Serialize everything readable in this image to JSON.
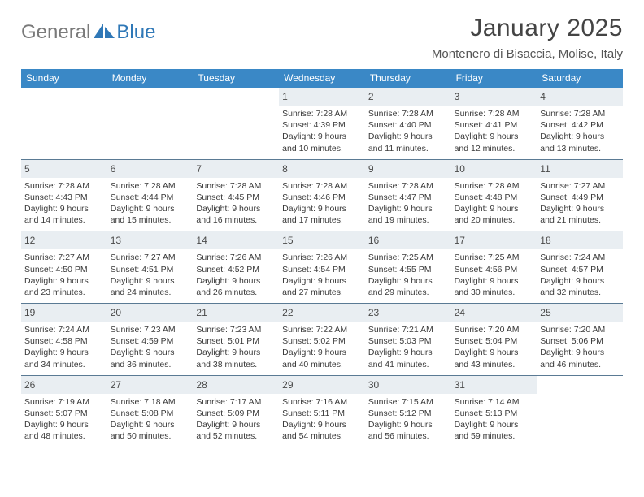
{
  "brand": {
    "part1": "General",
    "part2": "Blue"
  },
  "header": {
    "title": "January 2025",
    "location": "Montenero di Bisaccia, Molise, Italy"
  },
  "colors": {
    "header_bar": "#3a88c6",
    "week_divider": "#5a7a94",
    "day_band": "#e9eef2",
    "logo_gray": "#7a7a7a",
    "logo_blue": "#2f78b7"
  },
  "daysOfWeek": [
    "Sunday",
    "Monday",
    "Tuesday",
    "Wednesday",
    "Thursday",
    "Friday",
    "Saturday"
  ],
  "weeks": [
    [
      {
        "empty": true
      },
      {
        "empty": true
      },
      {
        "empty": true
      },
      {
        "day": "1",
        "sunrise": "Sunrise: 7:28 AM",
        "sunset": "Sunset: 4:39 PM",
        "daylight1": "Daylight: 9 hours",
        "daylight2": "and 10 minutes."
      },
      {
        "day": "2",
        "sunrise": "Sunrise: 7:28 AM",
        "sunset": "Sunset: 4:40 PM",
        "daylight1": "Daylight: 9 hours",
        "daylight2": "and 11 minutes."
      },
      {
        "day": "3",
        "sunrise": "Sunrise: 7:28 AM",
        "sunset": "Sunset: 4:41 PM",
        "daylight1": "Daylight: 9 hours",
        "daylight2": "and 12 minutes."
      },
      {
        "day": "4",
        "sunrise": "Sunrise: 7:28 AM",
        "sunset": "Sunset: 4:42 PM",
        "daylight1": "Daylight: 9 hours",
        "daylight2": "and 13 minutes."
      }
    ],
    [
      {
        "day": "5",
        "sunrise": "Sunrise: 7:28 AM",
        "sunset": "Sunset: 4:43 PM",
        "daylight1": "Daylight: 9 hours",
        "daylight2": "and 14 minutes."
      },
      {
        "day": "6",
        "sunrise": "Sunrise: 7:28 AM",
        "sunset": "Sunset: 4:44 PM",
        "daylight1": "Daylight: 9 hours",
        "daylight2": "and 15 minutes."
      },
      {
        "day": "7",
        "sunrise": "Sunrise: 7:28 AM",
        "sunset": "Sunset: 4:45 PM",
        "daylight1": "Daylight: 9 hours",
        "daylight2": "and 16 minutes."
      },
      {
        "day": "8",
        "sunrise": "Sunrise: 7:28 AM",
        "sunset": "Sunset: 4:46 PM",
        "daylight1": "Daylight: 9 hours",
        "daylight2": "and 17 minutes."
      },
      {
        "day": "9",
        "sunrise": "Sunrise: 7:28 AM",
        "sunset": "Sunset: 4:47 PM",
        "daylight1": "Daylight: 9 hours",
        "daylight2": "and 19 minutes."
      },
      {
        "day": "10",
        "sunrise": "Sunrise: 7:28 AM",
        "sunset": "Sunset: 4:48 PM",
        "daylight1": "Daylight: 9 hours",
        "daylight2": "and 20 minutes."
      },
      {
        "day": "11",
        "sunrise": "Sunrise: 7:27 AM",
        "sunset": "Sunset: 4:49 PM",
        "daylight1": "Daylight: 9 hours",
        "daylight2": "and 21 minutes."
      }
    ],
    [
      {
        "day": "12",
        "sunrise": "Sunrise: 7:27 AM",
        "sunset": "Sunset: 4:50 PM",
        "daylight1": "Daylight: 9 hours",
        "daylight2": "and 23 minutes."
      },
      {
        "day": "13",
        "sunrise": "Sunrise: 7:27 AM",
        "sunset": "Sunset: 4:51 PM",
        "daylight1": "Daylight: 9 hours",
        "daylight2": "and 24 minutes."
      },
      {
        "day": "14",
        "sunrise": "Sunrise: 7:26 AM",
        "sunset": "Sunset: 4:52 PM",
        "daylight1": "Daylight: 9 hours",
        "daylight2": "and 26 minutes."
      },
      {
        "day": "15",
        "sunrise": "Sunrise: 7:26 AM",
        "sunset": "Sunset: 4:54 PM",
        "daylight1": "Daylight: 9 hours",
        "daylight2": "and 27 minutes."
      },
      {
        "day": "16",
        "sunrise": "Sunrise: 7:25 AM",
        "sunset": "Sunset: 4:55 PM",
        "daylight1": "Daylight: 9 hours",
        "daylight2": "and 29 minutes."
      },
      {
        "day": "17",
        "sunrise": "Sunrise: 7:25 AM",
        "sunset": "Sunset: 4:56 PM",
        "daylight1": "Daylight: 9 hours",
        "daylight2": "and 30 minutes."
      },
      {
        "day": "18",
        "sunrise": "Sunrise: 7:24 AM",
        "sunset": "Sunset: 4:57 PM",
        "daylight1": "Daylight: 9 hours",
        "daylight2": "and 32 minutes."
      }
    ],
    [
      {
        "day": "19",
        "sunrise": "Sunrise: 7:24 AM",
        "sunset": "Sunset: 4:58 PM",
        "daylight1": "Daylight: 9 hours",
        "daylight2": "and 34 minutes."
      },
      {
        "day": "20",
        "sunrise": "Sunrise: 7:23 AM",
        "sunset": "Sunset: 4:59 PM",
        "daylight1": "Daylight: 9 hours",
        "daylight2": "and 36 minutes."
      },
      {
        "day": "21",
        "sunrise": "Sunrise: 7:23 AM",
        "sunset": "Sunset: 5:01 PM",
        "daylight1": "Daylight: 9 hours",
        "daylight2": "and 38 minutes."
      },
      {
        "day": "22",
        "sunrise": "Sunrise: 7:22 AM",
        "sunset": "Sunset: 5:02 PM",
        "daylight1": "Daylight: 9 hours",
        "daylight2": "and 40 minutes."
      },
      {
        "day": "23",
        "sunrise": "Sunrise: 7:21 AM",
        "sunset": "Sunset: 5:03 PM",
        "daylight1": "Daylight: 9 hours",
        "daylight2": "and 41 minutes."
      },
      {
        "day": "24",
        "sunrise": "Sunrise: 7:20 AM",
        "sunset": "Sunset: 5:04 PM",
        "daylight1": "Daylight: 9 hours",
        "daylight2": "and 43 minutes."
      },
      {
        "day": "25",
        "sunrise": "Sunrise: 7:20 AM",
        "sunset": "Sunset: 5:06 PM",
        "daylight1": "Daylight: 9 hours",
        "daylight2": "and 46 minutes."
      }
    ],
    [
      {
        "day": "26",
        "sunrise": "Sunrise: 7:19 AM",
        "sunset": "Sunset: 5:07 PM",
        "daylight1": "Daylight: 9 hours",
        "daylight2": "and 48 minutes."
      },
      {
        "day": "27",
        "sunrise": "Sunrise: 7:18 AM",
        "sunset": "Sunset: 5:08 PM",
        "daylight1": "Daylight: 9 hours",
        "daylight2": "and 50 minutes."
      },
      {
        "day": "28",
        "sunrise": "Sunrise: 7:17 AM",
        "sunset": "Sunset: 5:09 PM",
        "daylight1": "Daylight: 9 hours",
        "daylight2": "and 52 minutes."
      },
      {
        "day": "29",
        "sunrise": "Sunrise: 7:16 AM",
        "sunset": "Sunset: 5:11 PM",
        "daylight1": "Daylight: 9 hours",
        "daylight2": "and 54 minutes."
      },
      {
        "day": "30",
        "sunrise": "Sunrise: 7:15 AM",
        "sunset": "Sunset: 5:12 PM",
        "daylight1": "Daylight: 9 hours",
        "daylight2": "and 56 minutes."
      },
      {
        "day": "31",
        "sunrise": "Sunrise: 7:14 AM",
        "sunset": "Sunset: 5:13 PM",
        "daylight1": "Daylight: 9 hours",
        "daylight2": "and 59 minutes."
      },
      {
        "empty": true
      }
    ]
  ]
}
